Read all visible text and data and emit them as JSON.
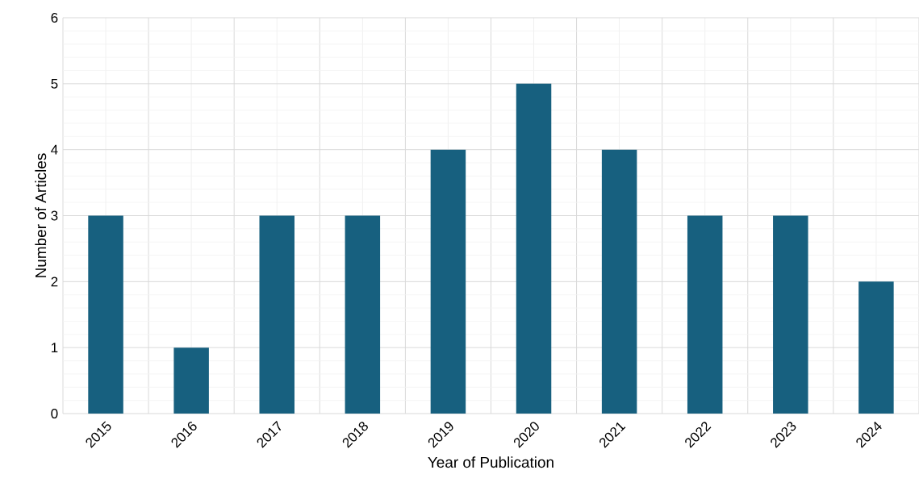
{
  "chart_data": {
    "type": "bar",
    "xlabel": "Year of Publication",
    "ylabel": "Number of Articles",
    "categories": [
      "2015",
      "2016",
      "2017",
      "2018",
      "2019",
      "2020",
      "2021",
      "2022",
      "2023",
      "2024"
    ],
    "values": [
      3,
      1,
      3,
      3,
      4,
      5,
      4,
      3,
      3,
      2
    ],
    "color": "#17607f",
    "ylim": [
      0,
      6
    ],
    "yticks": [
      0,
      1,
      2,
      3,
      4,
      5,
      6
    ],
    "grid": true
  }
}
